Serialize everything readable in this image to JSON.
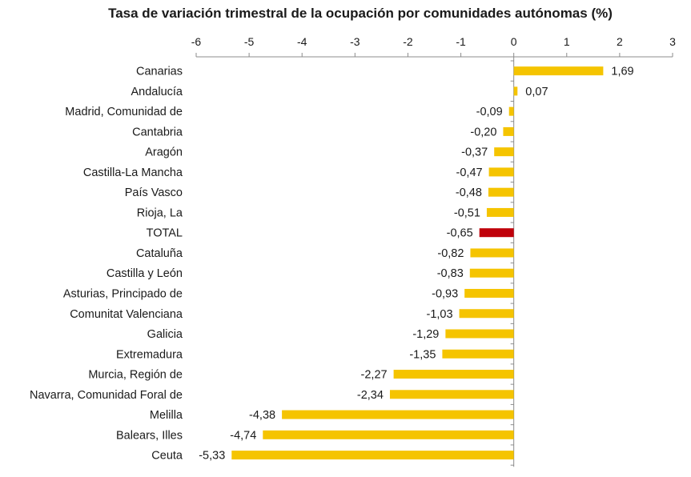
{
  "chart_data": {
    "type": "bar",
    "orientation": "horizontal",
    "title": "Tasa de variación trimestral de la ocupación por comunidades autónomas (%)",
    "xlabel": "",
    "ylabel": "",
    "xlim": [
      -6,
      3
    ],
    "x_ticks": [
      -6,
      -5,
      -4,
      -3,
      -2,
      -1,
      0,
      1,
      2,
      3
    ],
    "x_tick_labels": [
      "-6",
      "-5",
      "-4",
      "-3",
      "-2",
      "-1",
      "0",
      "1",
      "2",
      "3"
    ],
    "grid": false,
    "categories": [
      "Canarias",
      "Andalucía",
      "Madrid, Comunidad de",
      "Cantabria",
      "Aragón",
      "Castilla-La Mancha",
      "País Vasco",
      "Rioja, La",
      "TOTAL",
      "Cataluña",
      "Castilla y León",
      "Asturias, Principado de",
      "Comunitat Valenciana",
      "Galicia",
      "Extremadura",
      "Murcia, Región de",
      "Navarra, Comunidad Foral de",
      "Melilla",
      "Balears, Illes",
      "Ceuta"
    ],
    "values": [
      1.69,
      0.07,
      -0.09,
      -0.2,
      -0.37,
      -0.47,
      -0.48,
      -0.51,
      -0.65,
      -0.82,
      -0.83,
      -0.93,
      -1.03,
      -1.29,
      -1.35,
      -2.27,
      -2.34,
      -4.38,
      -4.74,
      -5.33
    ],
    "value_labels": [
      "1,69",
      "0,07",
      "-0,09",
      "-0,20",
      "-0,37",
      "-0,47",
      "-0,48",
      "-0,51",
      "-0,65",
      "-0,82",
      "-0,83",
      "-0,93",
      "-1,03",
      "-1,29",
      "-1,35",
      "-2,27",
      "-2,34",
      "-4,38",
      "-4,74",
      "-5,33"
    ],
    "colors": {
      "default": "#F5C400",
      "highlight": "#C0000A",
      "axis": "#8c8c8c"
    },
    "highlight_category": "TOTAL"
  }
}
